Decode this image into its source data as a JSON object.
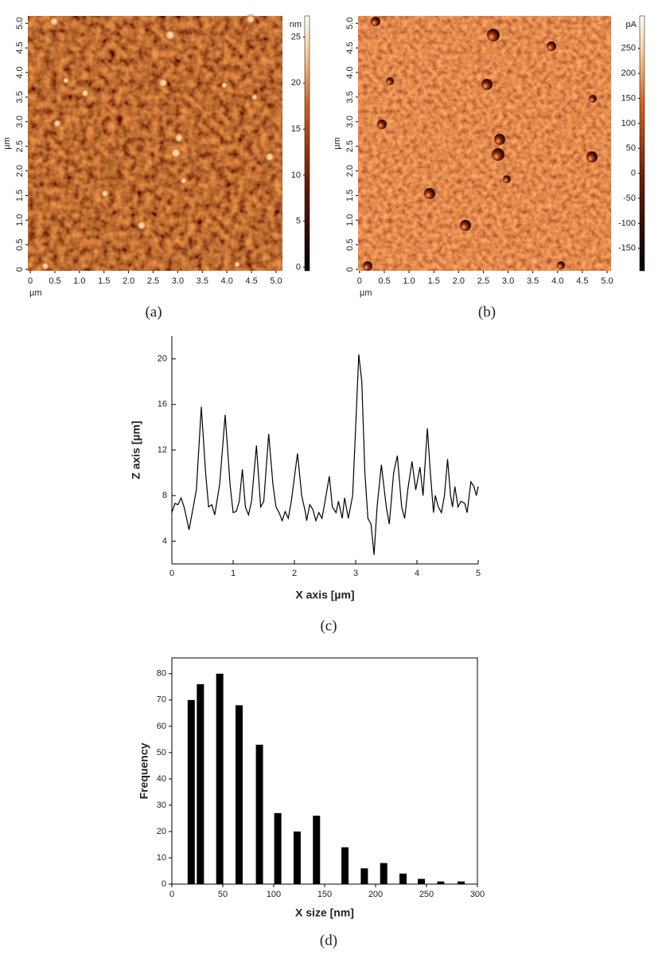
{
  "chart_data": [
    {
      "type": "image",
      "label": "(a)",
      "xlabel": "µm",
      "ylabel": "µm",
      "xlim": [
        -0.05,
        5.13
      ],
      "ylim": [
        -0.03,
        5.15
      ],
      "xticks": [
        0,
        0.5,
        {
          "value": 1,
          "label": "1.0"
        },
        1.5,
        {
          "value": 2,
          "label": "2.0"
        },
        2.5,
        {
          "value": 3,
          "label": "3.0"
        },
        3.5,
        {
          "value": 4,
          "label": "4.0"
        },
        4.5,
        {
          "value": 5,
          "label": "5.0"
        }
      ],
      "yticks": [
        0,
        0.5,
        {
          "value": 1,
          "label": "1.0"
        },
        1.5,
        {
          "value": 2,
          "label": "2.0"
        },
        2.5,
        {
          "value": 3,
          "label": "3.0"
        },
        3.5,
        {
          "value": 4,
          "label": "4.0"
        },
        4.5,
        {
          "value": 5,
          "label": "5.0"
        }
      ],
      "colorbar": {
        "unit": "nm",
        "clim": [
          -0.4,
          27.3
        ],
        "ticks": [
          0,
          5,
          10,
          15,
          20,
          25
        ]
      }
    },
    {
      "type": "image",
      "label": "(b)",
      "xlabel": "µm",
      "ylabel": "µm",
      "xlim": [
        -0.03,
        5.08
      ],
      "ylim": [
        -0.03,
        5.15
      ],
      "xticks": [
        0,
        0.5,
        {
          "value": 1,
          "label": "1.0"
        },
        1.5,
        {
          "value": 2,
          "label": "2.0"
        },
        2.5,
        {
          "value": 3,
          "label": "3.0"
        },
        3.5,
        {
          "value": 4,
          "label": "4.0"
        },
        4.5,
        {
          "value": 5,
          "label": "5.0"
        }
      ],
      "yticks": [
        0,
        0.5,
        {
          "value": 1,
          "label": "1.0"
        },
        1.5,
        {
          "value": 2,
          "label": "2.0"
        },
        2.5,
        {
          "value": 3,
          "label": "3.0"
        },
        3.5,
        {
          "value": 4,
          "label": "4.0"
        },
        4.5,
        {
          "value": 5,
          "label": "5.0"
        }
      ],
      "colorbar": {
        "unit": "pA",
        "clim": [
          -195,
          315
        ],
        "ticks": [
          -150,
          -100,
          -50,
          0,
          50,
          100,
          150,
          200,
          250
        ]
      }
    },
    {
      "type": "line",
      "label": "(c)",
      "xlabel": "X axis [µm]",
      "ylabel": "Z axis [µm]",
      "xlim": [
        0,
        5
      ],
      "ylim": [
        2,
        22
      ],
      "xticks": [
        0,
        1,
        2,
        3,
        4,
        5
      ],
      "yticks": [
        4,
        8,
        12,
        16,
        20
      ],
      "color": "#000000",
      "x": [
        0,
        0.05,
        0.1,
        0.15,
        0.2,
        0.28,
        0.35,
        0.4,
        0.48,
        0.55,
        0.6,
        0.65,
        0.7,
        0.78,
        0.87,
        0.95,
        1.0,
        1.05,
        1.1,
        1.15,
        1.2,
        1.25,
        1.3,
        1.38,
        1.45,
        1.5,
        1.58,
        1.65,
        1.7,
        1.75,
        1.8,
        1.85,
        1.9,
        1.95,
        2.05,
        2.12,
        2.18,
        2.2,
        2.25,
        2.3,
        2.35,
        2.4,
        2.45,
        2.5,
        2.57,
        2.62,
        2.68,
        2.72,
        2.78,
        2.82,
        2.88,
        2.95,
        3.0,
        3.05,
        3.1,
        3.15,
        3.2,
        3.25,
        3.3,
        3.35,
        3.42,
        3.5,
        3.55,
        3.62,
        3.68,
        3.75,
        3.8,
        3.85,
        3.92,
        3.98,
        4.05,
        4.1,
        4.17,
        4.22,
        4.27,
        4.3,
        4.35,
        4.4,
        4.45,
        4.5,
        4.55,
        4.58,
        4.62,
        4.67,
        4.72,
        4.78,
        4.82,
        4.88,
        4.93,
        4.97,
        5.0
      ],
      "values": [
        6.5,
        7.3,
        7.2,
        7.8,
        7.0,
        5.0,
        7.0,
        8.5,
        15.8,
        10,
        7,
        7.2,
        6.3,
        9,
        15.1,
        9,
        6.5,
        6.6,
        7.5,
        10.3,
        7,
        6.3,
        7.5,
        12.4,
        7,
        7.5,
        13.4,
        9,
        7,
        6.5,
        5.8,
        6.6,
        6,
        7.5,
        11.7,
        8,
        6.5,
        5.8,
        7.2,
        6.8,
        5.8,
        6.5,
        6,
        7.5,
        9.7,
        7,
        6.5,
        7.5,
        6,
        7.8,
        6,
        8,
        14,
        20.4,
        18,
        10,
        6,
        5.5,
        2.8,
        7,
        10.7,
        7,
        5.5,
        10,
        11.5,
        7,
        6,
        8.5,
        11,
        8.5,
        10.5,
        8,
        13.9,
        10,
        6.5,
        8,
        7,
        6.5,
        8,
        11.2,
        8,
        7,
        8.8,
        7,
        7.5,
        7.3,
        6.5,
        9.2,
        8.8,
        8,
        8.8
      ]
    },
    {
      "type": "bar",
      "label": "(d)",
      "xlabel": "X size [nm]",
      "ylabel": "Frequency",
      "xlim": [
        0,
        300
      ],
      "ylim": [
        0,
        86
      ],
      "xticks": [
        0,
        50,
        100,
        150,
        200,
        250,
        300
      ],
      "yticks": [
        0,
        10,
        20,
        30,
        40,
        50,
        60,
        70,
        80
      ],
      "color": "#000000",
      "x": [
        19,
        28,
        47,
        66,
        86,
        104,
        123,
        142,
        170,
        189,
        208,
        227,
        245,
        264,
        284
      ],
      "values": [
        70,
        76,
        80,
        68,
        53,
        27,
        20,
        26,
        14,
        6,
        8,
        4,
        2,
        1,
        1
      ]
    }
  ]
}
